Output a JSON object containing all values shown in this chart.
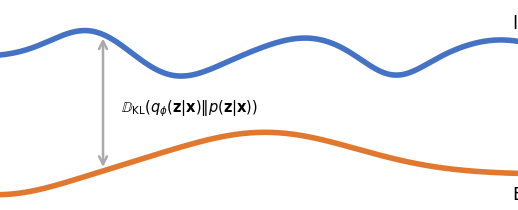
{
  "figsize": [
    5.18,
    2.1
  ],
  "dpi": 100,
  "bg_color": "#ffffff",
  "blue_color": "#4472c4",
  "orange_color": "#e07830",
  "arrow_color": "#aaaaaa",
  "blue_linewidth": 4.0,
  "orange_linewidth": 4.0,
  "log_label": "$\\log p(\\mathbf{x})$",
  "elbo_label": "$\\mathrm{ELBO}(\\mathbf{x})$",
  "kl_label": "$\\mathbb{D}_{\\mathrm{KL}}(q_\\phi(\\mathbf{z}|\\mathbf{x})\\|p(\\mathbf{z}|\\mathbf{x}))$",
  "label_fontsize": 13,
  "kl_fontsize": 10.5
}
